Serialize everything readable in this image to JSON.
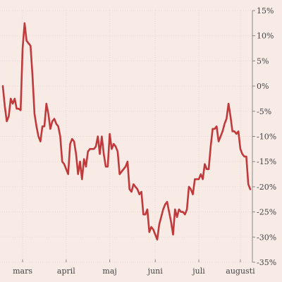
{
  "chart_data": {
    "type": "line",
    "title": "",
    "xlabel": "",
    "ylabel": "",
    "y_tick_labels": [
      "15%",
      "10%",
      "5%",
      "0%",
      "-5%",
      "-10%",
      "-15%",
      "-20%",
      "-25%",
      "-30%",
      "-35%"
    ],
    "y_tick_values": [
      15,
      10,
      5,
      0,
      -5,
      -10,
      -15,
      -20,
      -25,
      -30,
      -35
    ],
    "ylim": [
      -35,
      15
    ],
    "y_axis_side": "right",
    "x_tick_labels": [
      "mars",
      "april",
      "maj",
      "juni",
      "juli",
      "augusti"
    ],
    "x_tick_index": [
      10,
      32,
      54,
      77,
      99,
      120
    ],
    "grid": true,
    "series": [
      {
        "color": "#c0393b",
        "values": [
          0,
          -4,
          -7,
          -6,
          -2.5,
          -3.5,
          -2.5,
          -4.5,
          -4.5,
          -4.8,
          7.5,
          12.5,
          9,
          8.5,
          8,
          2,
          -5.5,
          -8,
          -10,
          -11,
          -8,
          -8,
          -3.5,
          -5.5,
          -8.5,
          -7,
          -6.5,
          -7.5,
          -8,
          -10,
          -15,
          -15.5,
          -16.5,
          -17.5,
          -11.5,
          -10.5,
          -11,
          -13.5,
          -17.5,
          -15,
          -18.5,
          -14.5,
          -16,
          -13,
          -12.5,
          -12.5,
          -12.5,
          -12,
          -10,
          -13.5,
          -10,
          -13.5,
          -16,
          -16,
          -9.5,
          -12.5,
          -11.5,
          -12,
          -13,
          -17.5,
          -17,
          -16.5,
          -16,
          -15,
          -20.5,
          -21,
          -19.5,
          -20,
          -20.5,
          -21.5,
          -21,
          -25.5,
          -25.5,
          -24.5,
          -29,
          -28,
          -28.5,
          -29.5,
          -30.5,
          -27.5,
          -26,
          -24.5,
          -23.5,
          -23,
          -25,
          -27,
          -29.5,
          -24.5,
          -26,
          -24.5,
          -25,
          -25,
          -25.5,
          -24.5,
          -20,
          -20.5,
          -21.5,
          -18.5,
          -18.5,
          -18.5,
          -17.5,
          -18.5,
          -15.5,
          -16.5,
          -16.5,
          -12,
          -8.5,
          -8.5,
          -8,
          -11,
          -10,
          -9,
          -7.5,
          -6.5,
          -3.5,
          -6,
          -9,
          -9,
          -9.5,
          -9,
          -12.5,
          -13.5,
          -14,
          -14,
          -19.5,
          -20.5
        ]
      }
    ]
  }
}
